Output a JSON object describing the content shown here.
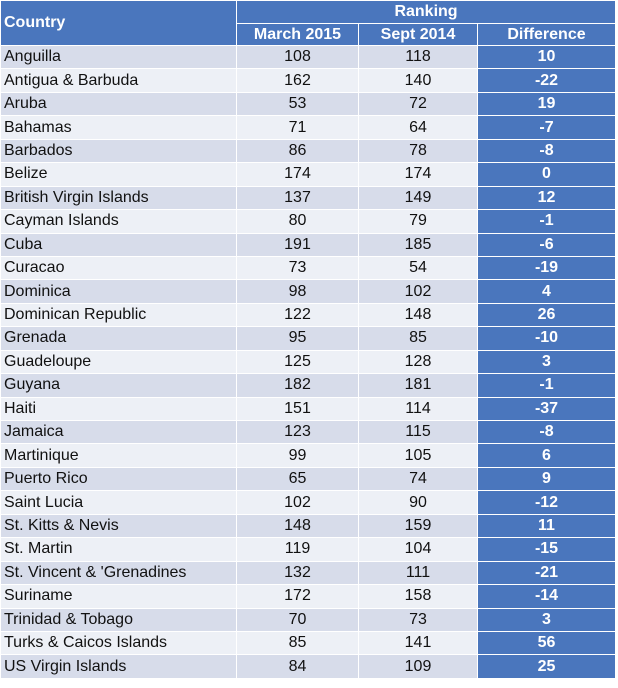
{
  "headers": {
    "country": "Country",
    "ranking": "Ranking",
    "march": "March 2015",
    "sept": "Sept 2014",
    "difference": "Difference"
  },
  "rows": [
    {
      "country": "Anguilla",
      "march": "108",
      "sept": "118",
      "diff": "10"
    },
    {
      "country": "Antigua & Barbuda",
      "march": "162",
      "sept": "140",
      "diff": "-22"
    },
    {
      "country": "Aruba",
      "march": "53",
      "sept": "72",
      "diff": "19"
    },
    {
      "country": "Bahamas",
      "march": "71",
      "sept": "64",
      "diff": "-7"
    },
    {
      "country": "Barbados",
      "march": "86",
      "sept": "78",
      "diff": "-8"
    },
    {
      "country": "Belize",
      "march": "174",
      "sept": "174",
      "diff": "0"
    },
    {
      "country": "British Virgin Islands",
      "march": "137",
      "sept": "149",
      "diff": "12"
    },
    {
      "country": "Cayman Islands",
      "march": "80",
      "sept": "79",
      "diff": "-1"
    },
    {
      "country": "Cuba",
      "march": "191",
      "sept": "185",
      "diff": "-6"
    },
    {
      "country": "Curacao",
      "march": "73",
      "sept": "54",
      "diff": "-19"
    },
    {
      "country": "Dominica",
      "march": "98",
      "sept": "102",
      "diff": "4"
    },
    {
      "country": "Dominican Republic",
      "march": "122",
      "sept": "148",
      "diff": "26"
    },
    {
      "country": "Grenada",
      "march": "95",
      "sept": "85",
      "diff": "-10"
    },
    {
      "country": "Guadeloupe",
      "march": "125",
      "sept": "128",
      "diff": "3"
    },
    {
      "country": "Guyana",
      "march": "182",
      "sept": "181",
      "diff": "-1"
    },
    {
      "country": "Haiti",
      "march": "151",
      "sept": "114",
      "diff": "-37"
    },
    {
      "country": "Jamaica",
      "march": "123",
      "sept": "115",
      "diff": "-8"
    },
    {
      "country": "Martinique",
      "march": "99",
      "sept": "105",
      "diff": "6"
    },
    {
      "country": "Puerto Rico",
      "march": "65",
      "sept": "74",
      "diff": "9"
    },
    {
      "country": "Saint Lucia",
      "march": "102",
      "sept": "90",
      "diff": "-12"
    },
    {
      "country": "St. Kitts & Nevis",
      "march": "148",
      "sept": "159",
      "diff": "11"
    },
    {
      "country": "St. Martin",
      "march": "119",
      "sept": "104",
      "diff": "-15"
    },
    {
      "country": "St. Vincent & 'Grenadines",
      "march": "132",
      "sept": "111",
      "diff": "-21"
    },
    {
      "country": "Suriname",
      "march": "172",
      "sept": "158",
      "diff": "-14"
    },
    {
      "country": "Trinidad & Tobago",
      "march": "70",
      "sept": "73",
      "diff": "3"
    },
    {
      "country": "Turks & Caicos Islands",
      "march": "85",
      "sept": "141",
      "diff": "56"
    },
    {
      "country": "US Virgin Islands",
      "march": "84",
      "sept": "109",
      "diff": "25"
    }
  ],
  "colors": {
    "header_bg": "#4a76bd",
    "row_dark": "#d7dcea",
    "row_light": "#edf0f6",
    "diff_bg": "#4a76bd"
  }
}
